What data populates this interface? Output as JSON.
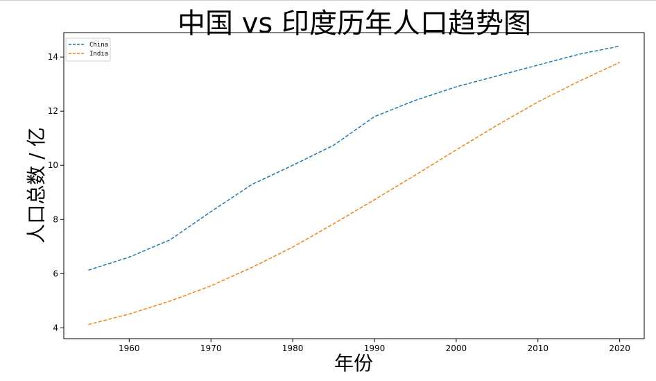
{
  "chart_data": {
    "type": "line",
    "title": "中国 vs 印度历年人口趋势图",
    "xlabel": "年份",
    "ylabel": "人口总数 / 亿",
    "xlim": [
      1952,
      2023
    ],
    "ylim": [
      3.6,
      14.9
    ],
    "xticks": [
      1960,
      1970,
      1980,
      1990,
      2000,
      2010,
      2020
    ],
    "yticks": [
      4,
      6,
      8,
      10,
      12,
      14
    ],
    "grid": false,
    "legend": "top-left",
    "x": [
      1955,
      1960,
      1965,
      1970,
      1975,
      1980,
      1985,
      1990,
      1995,
      2000,
      2005,
      2010,
      2015,
      2020
    ],
    "series": [
      {
        "name": "China",
        "color": "#1f77b4",
        "style": "dashed",
        "values": [
          6.13,
          6.61,
          7.25,
          8.29,
          9.29,
          10.0,
          10.74,
          11.8,
          12.4,
          12.9,
          13.3,
          13.7,
          14.1,
          14.4
        ]
      },
      {
        "name": "India",
        "color": "#ff7f0e",
        "style": "dashed",
        "values": [
          4.12,
          4.51,
          4.99,
          5.55,
          6.23,
          6.98,
          7.84,
          8.73,
          9.64,
          10.57,
          11.48,
          12.34,
          13.1,
          13.8
        ]
      }
    ]
  }
}
